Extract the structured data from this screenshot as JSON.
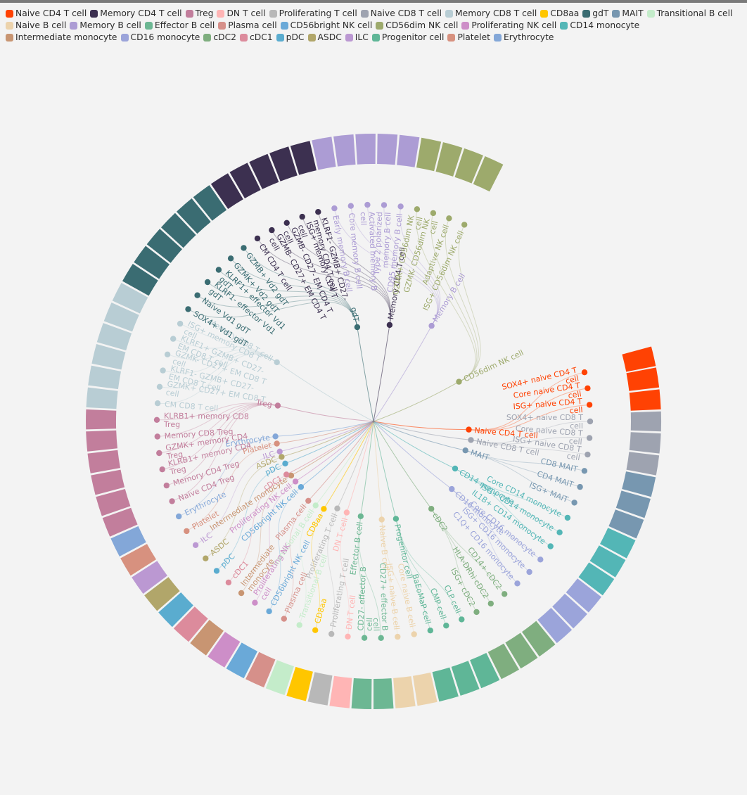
{
  "colors": {
    "Naive CD4 T cell": "#ff4203",
    "Memory CD4 T cell": "#3c3050",
    "Treg": "#c27e9c",
    "DN T cell": "#ffb5b5",
    "Proliferating T cell": "#b8b8b8",
    "Naive CD8 T cell": "#9ea3b0",
    "Memory CD8 T cell": "#b8cdd4",
    "CD8aa": "#ffc600",
    "gdT": "#3a6c72",
    "MAIT": "#7797b0",
    "Transitional B cell": "#c4ecca",
    "Naive B cell": "#ecd3ac",
    "Memory B cell": "#ac9cd4",
    "Effector B cell": "#6cb793",
    "Plasma cell": "#d6908a",
    "CD56bright NK cell": "#6aa9d8",
    "CD56dim NK cell": "#9daa6c",
    "Proliferating NK cell": "#cd8ec8",
    "CD14 monocyte": "#53b6b6",
    "Intermediate monocyte": "#c89572",
    "CD16 monocyte": "#9ba4da",
    "cDC2": "#7fae7f",
    "cDC1": "#dc8b9c",
    "pDC": "#5aaccf",
    "ASDC": "#b1a66a",
    "ILC": "#bb98d2",
    "Progenitor cell": "#5fb697",
    "Platelet": "#d7917f",
    "Erythrocyte": "#83a7d8"
  },
  "legend": [
    "Naive CD4 T cell",
    "Memory CD4 T cell",
    "Treg",
    "DN T cell",
    "Proliferating T cell",
    "Naive CD8 T cell",
    "Memory CD8 T cell",
    "CD8aa",
    "gdT",
    "MAIT",
    "Transitional B cell",
    "Naive B cell",
    "Memory B cell",
    "Effector B cell",
    "Plasma cell",
    "CD56bright NK cell",
    "CD56dim NK cell",
    "Proliferating NK cell",
    "CD14 monocyte",
    "Intermediate monocyte",
    "CD16 monocyte",
    "cDC2",
    "cDC1",
    "pDC",
    "ASDC",
    "ILC",
    "Progenitor cell",
    "Platelet",
    "Erythrocyte"
  ],
  "hierarchy": [
    {
      "label": "Naive CD4 T cell",
      "group": "Naive CD4 T cell",
      "angle": 94.9,
      "r": 136,
      "children": [
        {
          "label": "SOX4+ naive CD4 T cell",
          "angle": 76.9
        },
        {
          "label": "Core naive CD4 T cell",
          "angle": 81.2
        },
        {
          "label": "ISG+ naive CD4 T cell",
          "angle": 85.6
        }
      ]
    },
    {
      "label": "Naive CD8 T cell",
      "group": "Naive CD8 T cell",
      "angle": 100.8,
      "r": 141,
      "children": [
        {
          "label": "SOX4+ naive CD8 T cell",
          "angle": 90
        },
        {
          "label": "Core naive CD8 T cell",
          "angle": 94.4
        },
        {
          "label": "ISG+ naive CD8 T cell",
          "angle": 98.8
        }
      ]
    },
    {
      "label": "MAIT",
      "group": "MAIT",
      "angle": 107.5,
      "r": 137,
      "children": [
        {
          "label": "CD8 MAIT",
          "angle": 103.2
        },
        {
          "label": "CD4 MAIT",
          "angle": 107.6
        },
        {
          "label": "ISG+ MAIT",
          "angle": 112
        }
      ]
    },
    {
      "label": "CD14 monocyte",
      "group": "CD14 monocyte",
      "angle": 120,
      "r": 134,
      "children": [
        {
          "label": "Core CD14 monocyte",
          "angle": 116.4
        },
        {
          "label": "ISG+ CD14 monocyte",
          "angle": 120.8
        },
        {
          "label": "IL1B+ CD14 monocyte",
          "angle": 125.2
        }
      ]
    },
    {
      "label": "CD16 monocyte",
      "group": "CD16 monocyte",
      "angle": 130.8,
      "r": 147,
      "children": [
        {
          "label": "Core CD16 monocyte",
          "angle": 129.6
        },
        {
          "label": "ISG+ CD16 monocyte",
          "angle": 134
        },
        {
          "label": "C1Q+ CD16 monocyte",
          "angle": 138.4
        }
      ]
    },
    {
      "label": "cDC2",
      "group": "cDC2",
      "angle": 146.5,
      "r": 149,
      "children": [
        {
          "label": "CD14+ cDC2",
          "angle": 142.8
        },
        {
          "label": "HLA-DRhi cDC2",
          "angle": 147.2
        },
        {
          "label": "ISG+ cDC2",
          "angle": 151.6
        }
      ]
    },
    {
      "label": "Progenitor cell",
      "group": "Progenitor cell",
      "angle": 167,
      "r": 142,
      "children": [
        {
          "label": "CLP cell",
          "angle": 156
        },
        {
          "label": "CMP cell",
          "angle": 160.4
        },
        {
          "label": "BaEoMaP cell",
          "angle": 164.8
        }
      ]
    },
    {
      "label": "Naive B cell",
      "group": "Naive B cell",
      "angle": 175.2,
      "r": 140,
      "children": [
        {
          "label": "Core naive B cell",
          "angle": 169.2
        },
        {
          "label": "ISG+ naive B cell",
          "angle": 173.6
        }
      ]
    },
    {
      "label": "Effector B cell",
      "group": "Effector B cell",
      "angle": 187.7,
      "r": 136,
      "children": [
        {
          "label": "CD27+ effector B cell",
          "angle": 178
        },
        {
          "label": "CD27- effector B cell",
          "angle": 182.4
        }
      ]
    },
    {
      "label": "DN T cell",
      "group": "DN T cell",
      "angle": 196.4,
      "r": 135,
      "children": [
        {
          "label": "DN T cell",
          "angle": 186.8
        }
      ]
    },
    {
      "label": "Proliferating T cell",
      "group": "Proliferating T cell",
      "angle": 202.6,
      "r": 134,
      "children": [
        {
          "label": "Proliferating T cell",
          "angle": 191.2
        }
      ]
    },
    {
      "label": "CD8aa",
      "group": "CD8aa",
      "angle": 209.6,
      "r": 143,
      "children": [
        {
          "label": "CD8aa",
          "angle": 195.6
        }
      ]
    },
    {
      "label": "Transitional B cell",
      "group": "Transitional B cell",
      "angle": 214.6,
      "r": 145,
      "children": [
        {
          "label": "Transitional B cell",
          "angle": 200
        }
      ]
    },
    {
      "label": "Plasma cell",
      "group": "Plasma cell",
      "angle": 219.4,
      "r": 146,
      "children": [
        {
          "label": "Plasma cell",
          "angle": 204.4
        }
      ]
    },
    {
      "label": "CD56bright NK cell",
      "group": "CD56bright NK cell",
      "angle": 227.9,
      "r": 139,
      "children": [
        {
          "label": "CD56bright NK cell",
          "angle": 208.8
        }
      ]
    },
    {
      "label": "Proliferating NK cell",
      "group": "Proliferating NK cell",
      "angle": 232.4,
      "r": 140,
      "children": [
        {
          "label": "Proliferating NK cell",
          "angle": 213.2
        }
      ]
    },
    {
      "label": "Intermediate monocyte",
      "group": "Intermediate monocyte",
      "angle": 236.7,
      "r": 140,
      "children": [
        {
          "label": "Intermediate monocyte",
          "angle": 217.6
        }
      ]
    },
    {
      "label": "cDC1",
      "group": "cDC1",
      "angle": 238.6,
      "r": 145,
      "children": [
        {
          "label": "cDC1",
          "angle": 222
        }
      ]
    },
    {
      "label": "pDC",
      "group": "pDC",
      "angle": 244.5,
      "r": 139,
      "children": [
        {
          "label": "pDC",
          "angle": 226.4
        }
      ]
    },
    {
      "label": "ASDC",
      "group": "ASDC",
      "angle": 248.9,
      "r": 140,
      "children": [
        {
          "label": "ASDC",
          "angle": 230.8
        }
      ]
    },
    {
      "label": "ILC",
      "group": "ILC",
      "angle": 252.2,
      "r": 140,
      "children": [
        {
          "label": "ILC",
          "angle": 235.2
        }
      ]
    },
    {
      "label": "Platelet",
      "group": "Platelet",
      "angle": 257.1,
      "r": 141,
      "children": [
        {
          "label": "Platelet",
          "angle": 239.6
        }
      ]
    },
    {
      "label": "Erythrocyte",
      "group": "Erythrocyte",
      "angle": 261.3,
      "r": 141,
      "children": [
        {
          "label": "Erythrocyte",
          "angle": 244
        }
      ]
    },
    {
      "label": "Treg",
      "group": "Treg",
      "angle": 279.4,
      "r": 138,
      "children": [
        {
          "label": "Naive CD4 Treg",
          "angle": 248.4
        },
        {
          "label": "Memory CD4 Treg",
          "angle": 252.8
        },
        {
          "label": "KLRB1+ memory CD4 Treg",
          "angle": 257.2
        },
        {
          "label": "GZMK+ memory CD4 Treg",
          "angle": 261.6
        },
        {
          "label": "Memory CD8 Treg",
          "angle": 266
        },
        {
          "label": "KLRB1+ memory CD8 Treg",
          "angle": 270.4
        }
      ]
    },
    {
      "label": "Memory CD8 T cell",
      "group": "Memory CD8 T cell",
      "angle": 301.5,
      "r": 161,
      "children": [
        {
          "label": "CM CD8 T cell",
          "angle": 274.8
        },
        {
          "label": "GZMK+ CD27+ EM CD8 T cell",
          "angle": 279.2
        },
        {
          "label": "KLRF1- GZMB+ CD27- EM CD8 T cell",
          "angle": 283.6
        },
        {
          "label": "GZMK- CD27+ EM CD8 T cell",
          "angle": 288
        },
        {
          "label": "KLRF1+ GZMB+ CD27- EM CD8 T cell",
          "angle": 292.4
        },
        {
          "label": "ISG+ memory CD8 T cell",
          "angle": 296.8
        }
      ]
    },
    {
      "label": "gdT",
      "group": "gdT",
      "angle": 350.2,
      "r": 136,
      "children": [
        {
          "label": "SOX4+ Vd1 gdT",
          "angle": 301.2
        },
        {
          "label": "Naive Vd1 gdT",
          "angle": 305.6
        },
        {
          "label": "KLRF1- effector Vd1 gdT",
          "angle": 310
        },
        {
          "label": "KLRF1+ effector Vd1 gdT",
          "angle": 314.4
        },
        {
          "label": "GZMK+ Vd2 gdT",
          "angle": 318.8
        },
        {
          "label": "GZMB+ Vd2 gdT",
          "angle": 323.2
        }
      ]
    },
    {
      "label": "Memory CD4 T cell",
      "group": "Memory CD4 T cell",
      "angle": 9.5,
      "r": 139,
      "children": [
        {
          "label": "CM CD4 T cell",
          "angle": 327.6
        },
        {
          "label": "GZMB- CD27+ EM CD4 T cell",
          "angle": 332
        },
        {
          "label": "GZMB- CD27- EM CD4 T cell",
          "angle": 336.4
        },
        {
          "label": "ISG+ memory CD4 T cell",
          "angle": 340.8
        },
        {
          "label": "KLRF1- GZMB+ CD27- memory CD4 T cell",
          "angle": 345.2
        }
      ]
    },
    {
      "label": "Memory B cell",
      "group": "Memory B cell",
      "angle": 31.3,
      "r": 159,
      "children": [
        {
          "label": "Early memory B cell",
          "angle": 349.6
        },
        {
          "label": "Core memory B cell",
          "angle": 354
        },
        {
          "label": "Activated memory B cell",
          "angle": 358.4
        },
        {
          "label": "Type 2 polarized memory B cell",
          "angle": 2.8
        },
        {
          "label": "CD95 memory B cell",
          "angle": 7.2
        }
      ]
    },
    {
      "label": "CD56dim NK cell",
      "group": "CD56dim NK cell",
      "angle": 65.1,
      "r": 134,
      "children": [
        {
          "label": "GZMK+ CD56dim NK cell",
          "angle": 11.6
        },
        {
          "label": "GZMK- CD56dim NK cell",
          "angle": 16
        },
        {
          "label": "Adaptive NK cell",
          "angle": 20.4
        },
        {
          "label": "ISG+ CD56dim NK cell",
          "angle": 24.8
        }
      ]
    }
  ]
}
